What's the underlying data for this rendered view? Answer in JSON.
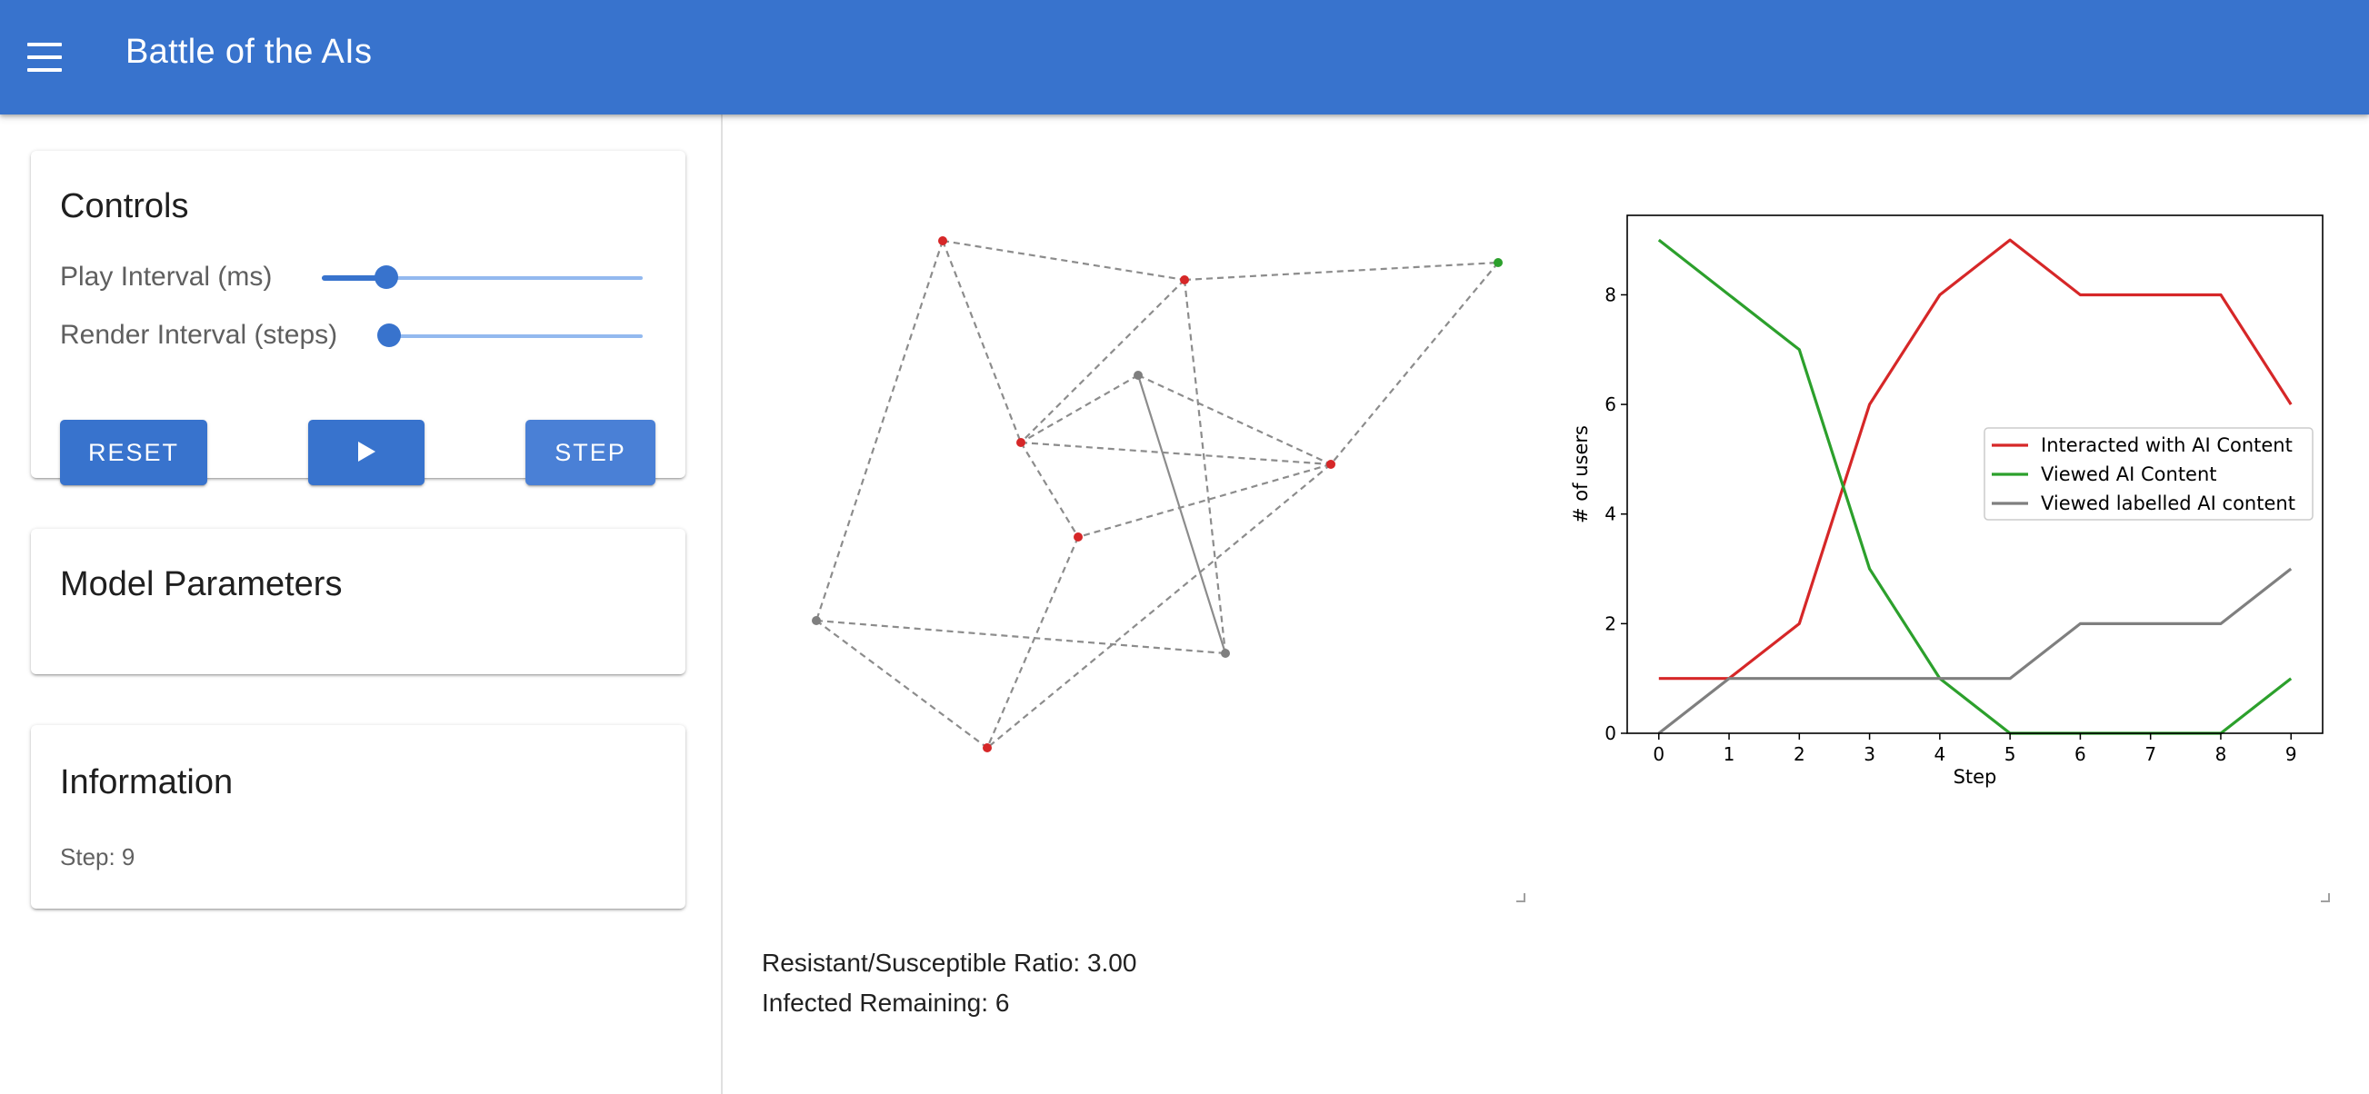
{
  "app": {
    "title": "Battle of the AIs"
  },
  "controls": {
    "title": "Controls",
    "play_interval_label": "Play Interval (ms)",
    "play_interval_fraction": 0.2,
    "render_interval_label": "Render Interval (steps)",
    "render_interval_fraction": 0.0,
    "reset_label": "RESET",
    "play_icon": "play-icon",
    "step_label": "STEP"
  },
  "model_parameters": {
    "title": "Model Parameters"
  },
  "information": {
    "title": "Information",
    "step_text": "Step: 9"
  },
  "network": {
    "edge_style": "dashed",
    "node_colors": {
      "infected": "#d62728",
      "susceptible": "#2ca02c",
      "resistant": "#7f7f7f"
    },
    "nodes": [
      {
        "id": 0,
        "state": "infected"
      },
      {
        "id": 1,
        "state": "infected"
      },
      {
        "id": 2,
        "state": "susceptible"
      },
      {
        "id": 3,
        "state": "resistant"
      },
      {
        "id": 4,
        "state": "infected"
      },
      {
        "id": 5,
        "state": "infected"
      },
      {
        "id": 6,
        "state": "resistant"
      },
      {
        "id": 7,
        "state": "infected"
      },
      {
        "id": 8,
        "state": "resistant"
      },
      {
        "id": 9,
        "state": "infected"
      }
    ],
    "edges": [
      [
        0,
        1
      ],
      [
        0,
        4
      ],
      [
        0,
        6
      ],
      [
        1,
        2
      ],
      [
        1,
        4
      ],
      [
        1,
        8
      ],
      [
        2,
        5
      ],
      [
        3,
        4
      ],
      [
        3,
        5
      ],
      [
        3,
        8
      ],
      [
        4,
        5
      ],
      [
        4,
        7
      ],
      [
        5,
        7
      ],
      [
        5,
        9
      ],
      [
        6,
        8
      ],
      [
        6,
        9
      ],
      [
        7,
        9
      ]
    ]
  },
  "chart_data": {
    "type": "line",
    "xlabel": "Step",
    "ylabel": "# of users",
    "x": [
      0,
      1,
      2,
      3,
      4,
      5,
      6,
      7,
      8,
      9
    ],
    "xlim": [
      -0.45,
      9.45
    ],
    "ylim": [
      0,
      9.45
    ],
    "yticks": [
      0,
      2,
      4,
      6,
      8
    ],
    "legend_position": "center-right",
    "grid": false,
    "series": [
      {
        "name": "Interacted with AI Content",
        "color": "#d62728",
        "values": [
          1,
          1,
          2,
          6,
          8,
          9,
          8,
          8,
          8,
          6
        ]
      },
      {
        "name": "Viewed AI Content",
        "color": "#2ca02c",
        "values": [
          9,
          8,
          7,
          3,
          1,
          0,
          0,
          0,
          0,
          1
        ]
      },
      {
        "name": "Viewed labelled AI content",
        "color": "#7f7f7f",
        "values": [
          0,
          1,
          1,
          1,
          1,
          1,
          2,
          2,
          2,
          3
        ]
      }
    ]
  },
  "stats": {
    "ratio_text": "Resistant/Susceptible Ratio: 3.00",
    "infected_text": "Infected Remaining: 6"
  }
}
